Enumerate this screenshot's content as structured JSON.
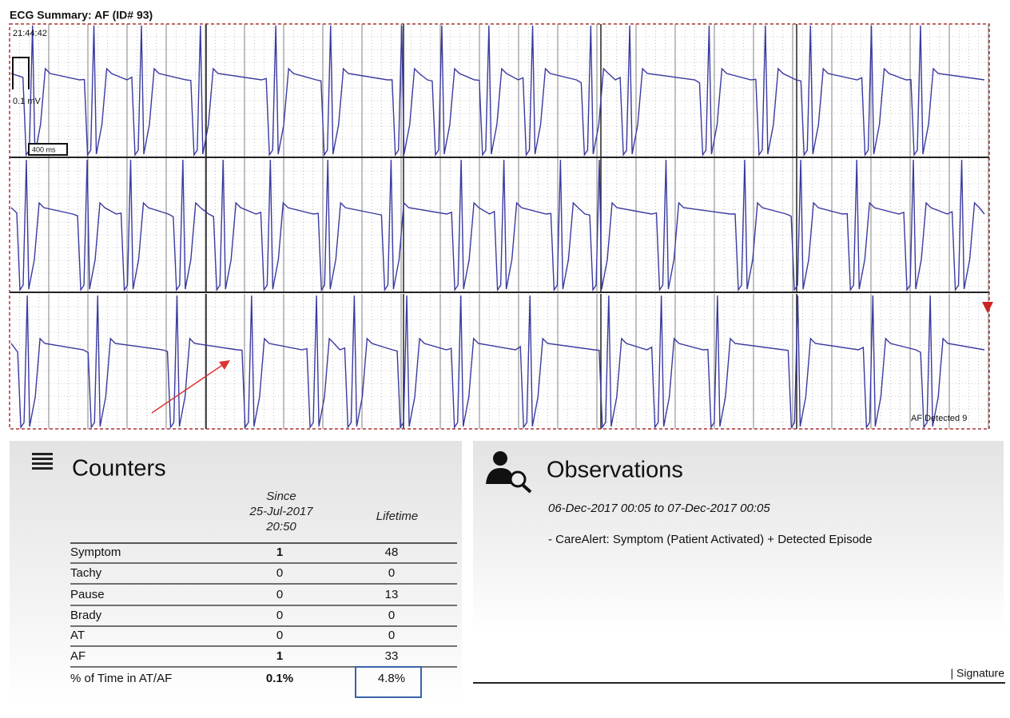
{
  "ecg": {
    "title": "ECG Summary: AF (ID# 93)",
    "time": "21:44:42",
    "amplitude_scale": "0.1 mV",
    "time_scale": "400 ms",
    "event_label": "AF Detected 9"
  },
  "counters": {
    "title": "Counters",
    "columns": [
      [
        "Since",
        "25-Jul-2017",
        "20:50"
      ],
      [
        "Lifetime"
      ]
    ],
    "rows": [
      [
        "Symptom",
        "1",
        "48"
      ],
      [
        "Tachy",
        "0",
        "0"
      ],
      [
        "Pause",
        "0",
        "13"
      ],
      [
        "Brady",
        "0",
        "0"
      ],
      [
        "AT",
        "0",
        "0"
      ],
      [
        "AF",
        "1",
        "33"
      ],
      [
        "% of Time in AT/AF",
        "0.1%",
        "4.8%"
      ]
    ]
  },
  "observations": {
    "title": "Observations",
    "period": "06-Dec-2017 00:05 to 07-Dec-2017 00:05",
    "items": [
      "- CareAlert: Symptom (Patient Activated) + Detected Episode"
    ],
    "signature": "| Signature"
  }
}
